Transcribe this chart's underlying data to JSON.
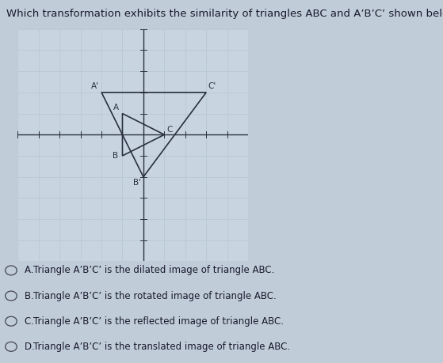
{
  "title": "Which transformation exhibits the similarity of triangles ABC and A’B’C’ shown below?",
  "title_fontsize": 9.5,
  "bg_color": "#c0cdd8",
  "grid_color": "#d0dce6",
  "grid_line_color": "#b8c8d4",
  "grid_bg": "#c8d5e0",
  "triangle_ABC": {
    "A": [
      -1,
      1
    ],
    "B": [
      -1,
      -1
    ],
    "C": [
      1,
      0
    ]
  },
  "triangle_ApBpCp": {
    "A": [
      -2,
      2
    ],
    "B": [
      0,
      -2
    ],
    "C": [
      3,
      2
    ]
  },
  "triangle_color": "#2a3040",
  "axis_xlim": [
    -6,
    5
  ],
  "axis_ylim": [
    -6,
    5
  ],
  "options": [
    {
      "letter": "A",
      "text_before": "Triangle A’B’C’",
      "text_after": " is the dilated image of triangle ABC."
    },
    {
      "letter": "B",
      "text_before": "Triangle A’B’C’",
      "text_after": " is the rotated image of triangle ABC."
    },
    {
      "letter": "C",
      "text_before": "Triangle A’B’C’",
      "text_after": " is the reflected image of triangle ABC."
    },
    {
      "letter": "D",
      "text_before": "Triangle A’B’C’",
      "text_after": " is the translated image of triangle ABC."
    }
  ],
  "option_fontsize": 8.5,
  "label_fontsize": 7.5
}
